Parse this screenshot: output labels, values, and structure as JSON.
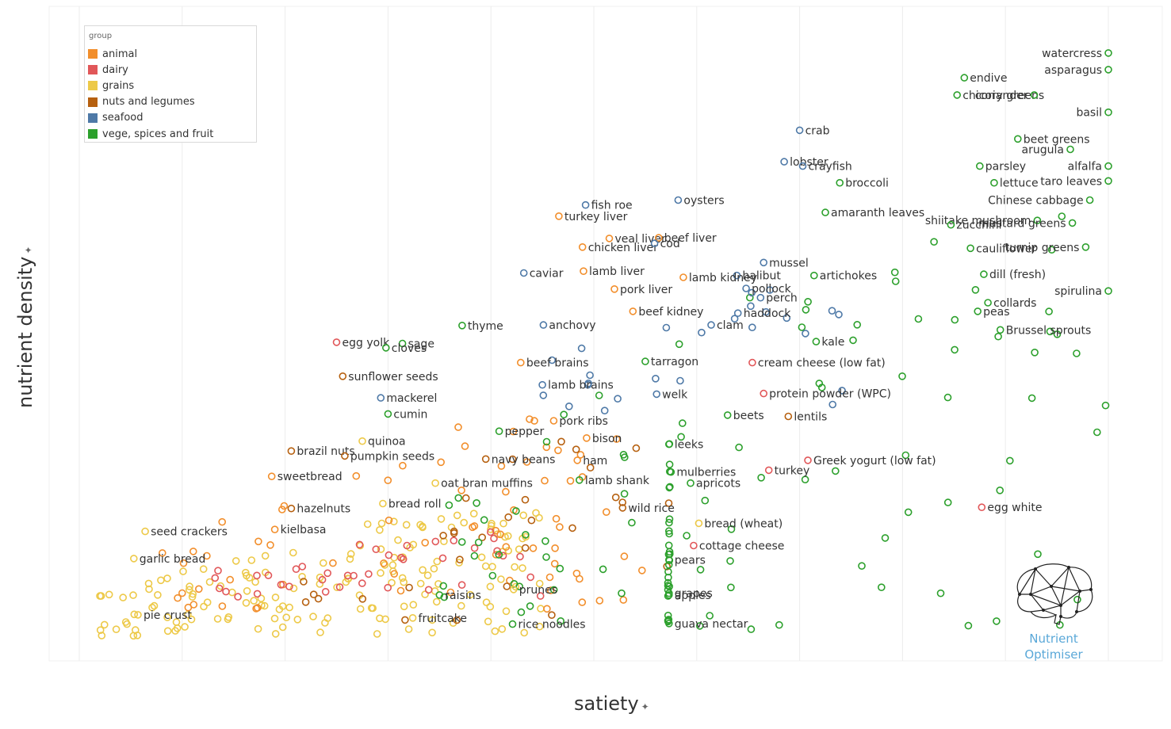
{
  "chart_data": {
    "type": "scatter",
    "xlabel": "satiety",
    "ylabel": "nutrient density",
    "legend": {
      "title": "group",
      "placement": "top-left",
      "entries": [
        {
          "name": "animal",
          "color": "#f28e2b"
        },
        {
          "name": "dairy",
          "color": "#e15759"
        },
        {
          "name": "grains",
          "color": "#edc948"
        },
        {
          "name": "nuts and legumes",
          "color": "#b6600f"
        },
        {
          "name": "seafood",
          "color": "#4e79a7"
        },
        {
          "name": "vege, spices and fruit",
          "color": "#2ca02c"
        }
      ]
    },
    "grid": true,
    "xlim": [
      0,
      100
    ],
    "ylim": [
      0,
      100
    ],
    "labeled_points": [
      {
        "label": "watercress",
        "group": "vege, spices and fruit",
        "x": 100,
        "y": 96.3
      },
      {
        "label": "asparagus",
        "group": "vege, spices and fruit",
        "x": 100,
        "y": 93.6
      },
      {
        "label": "endive",
        "group": "vege, spices and fruit",
        "x": 86.0,
        "y": 92.3
      },
      {
        "label": "chicory greens",
        "group": "vege, spices and fruit",
        "x": 85.3,
        "y": 89.5
      },
      {
        "label": "coriander",
        "group": "vege, spices and fruit",
        "x": 92.8,
        "y": 89.5
      },
      {
        "label": "basil",
        "group": "vege, spices and fruit",
        "x": 100,
        "y": 86.7
      },
      {
        "label": "crab",
        "group": "seafood",
        "x": 70.0,
        "y": 83.8
      },
      {
        "label": "arugula",
        "group": "vege, spices and fruit",
        "x": 96.3,
        "y": 80.7
      },
      {
        "label": "beet greens",
        "group": "vege, spices and fruit",
        "x": 91.2,
        "y": 82.4
      },
      {
        "label": "lobster",
        "group": "seafood",
        "x": 68.5,
        "y": 78.7
      },
      {
        "label": "parsley",
        "group": "vege, spices and fruit",
        "x": 87.5,
        "y": 78.0
      },
      {
        "label": "alfalfa",
        "group": "vege, spices and fruit",
        "x": 100,
        "y": 78.0
      },
      {
        "label": "crayfish",
        "group": "seafood",
        "x": 70.3,
        "y": 78.0
      },
      {
        "label": "broccoli",
        "group": "vege, spices and fruit",
        "x": 73.9,
        "y": 75.3
      },
      {
        "label": "lettuce",
        "group": "vege, spices and fruit",
        "x": 88.9,
        "y": 75.3
      },
      {
        "label": "taro leaves",
        "group": "vege, spices and fruit",
        "x": 100,
        "y": 75.6
      },
      {
        "label": "Chinese cabbage",
        "group": "vege, spices and fruit",
        "x": 98.2,
        "y": 72.5
      },
      {
        "label": "fish roe",
        "group": "seafood",
        "x": 49.2,
        "y": 71.7
      },
      {
        "label": "oysters",
        "group": "seafood",
        "x": 58.2,
        "y": 72.5
      },
      {
        "label": "amaranth leaves",
        "group": "vege, spices and fruit",
        "x": 72.5,
        "y": 70.5
      },
      {
        "label": "shiitake mushroom",
        "group": "vege, spices and fruit",
        "x": 93.1,
        "y": 69.2
      },
      {
        "label": "turkey liver",
        "group": "animal",
        "x": 46.6,
        "y": 69.9
      },
      {
        "label": "zucchini",
        "group": "vege, spices and fruit",
        "x": 84.7,
        "y": 68.5
      },
      {
        "label": "mustard greens",
        "group": "vege, spices and fruit",
        "x": 96.5,
        "y": 68.8
      },
      {
        "label": "veal liver",
        "group": "animal",
        "x": 51.5,
        "y": 66.3
      },
      {
        "label": "beef liver",
        "group": "animal",
        "x": 56.3,
        "y": 66.4
      },
      {
        "label": "chicken liver",
        "group": "animal",
        "x": 48.9,
        "y": 64.9
      },
      {
        "label": "cod",
        "group": "seafood",
        "x": 55.9,
        "y": 65.5
      },
      {
        "label": "mussel",
        "group": "seafood",
        "x": 66.5,
        "y": 62.4
      },
      {
        "label": "halibut",
        "group": "seafood",
        "x": 63.9,
        "y": 60.3
      },
      {
        "label": "cauliflower",
        "group": "vege, spices and fruit",
        "x": 86.6,
        "y": 64.7
      },
      {
        "label": "turnip greens",
        "group": "vege, spices and fruit",
        "x": 97.8,
        "y": 64.9
      },
      {
        "label": "artichokes",
        "group": "vege, spices and fruit",
        "x": 71.4,
        "y": 60.3
      },
      {
        "label": "caviar",
        "group": "seafood",
        "x": 43.2,
        "y": 60.7
      },
      {
        "label": "lamb kidney",
        "group": "animal",
        "x": 58.7,
        "y": 60.0
      },
      {
        "label": "lamb liver",
        "group": "animal",
        "x": 49.0,
        "y": 61.0
      },
      {
        "label": "dill (fresh)",
        "group": "vege, spices and fruit",
        "x": 87.9,
        "y": 60.5
      },
      {
        "label": "pollock",
        "group": "seafood",
        "x": 64.8,
        "y": 58.2
      },
      {
        "label": "pork liver",
        "group": "animal",
        "x": 52.0,
        "y": 58.1
      },
      {
        "label": "spirulina",
        "group": "vege, spices and fruit",
        "x": 100,
        "y": 57.8
      },
      {
        "label": "collards",
        "group": "vege, spices and fruit",
        "x": 88.3,
        "y": 55.9
      },
      {
        "label": "perch",
        "group": "seafood",
        "x": 66.2,
        "y": 56.7
      },
      {
        "label": "beef kidney",
        "group": "animal",
        "x": 53.8,
        "y": 54.5
      },
      {
        "label": "anchovy",
        "group": "seafood",
        "x": 45.1,
        "y": 52.3
      },
      {
        "label": "clam",
        "group": "seafood",
        "x": 61.4,
        "y": 52.3
      },
      {
        "label": "haddock",
        "group": "seafood",
        "x": 64.0,
        "y": 54.2
      },
      {
        "label": "peas",
        "group": "vege, spices and fruit",
        "x": 87.3,
        "y": 54.5
      },
      {
        "label": "thyme",
        "group": "vege, spices and fruit",
        "x": 37.2,
        "y": 52.2
      },
      {
        "label": "sage",
        "group": "vege, spices and fruit",
        "x": 31.4,
        "y": 49.3
      },
      {
        "label": "kale",
        "group": "vege, spices and fruit",
        "x": 71.6,
        "y": 49.6
      },
      {
        "label": "Brussel sprouts",
        "group": "vege, spices and fruit",
        "x": 89.5,
        "y": 51.5
      },
      {
        "label": "egg yolk",
        "group": "dairy",
        "x": 25.0,
        "y": 49.5
      },
      {
        "label": "cloves",
        "group": "vege, spices and fruit",
        "x": 29.8,
        "y": 48.6
      },
      {
        "label": "tarragon",
        "group": "vege, spices and fruit",
        "x": 55.0,
        "y": 46.4
      },
      {
        "label": "beef brains",
        "group": "animal",
        "x": 42.9,
        "y": 46.2
      },
      {
        "label": "cream cheese (low fat)",
        "group": "dairy",
        "x": 65.4,
        "y": 46.2
      },
      {
        "label": "sunflower seeds",
        "group": "nuts and legumes",
        "x": 25.6,
        "y": 44.0
      },
      {
        "label": "welk",
        "group": "seafood",
        "x": 56.1,
        "y": 41.1
      },
      {
        "label": "protein powder (WPC)",
        "group": "dairy",
        "x": 66.5,
        "y": 41.2
      },
      {
        "label": "mackerel",
        "group": "seafood",
        "x": 29.3,
        "y": 40.5
      },
      {
        "label": "beets",
        "group": "vege, spices and fruit",
        "x": 63.0,
        "y": 37.7
      },
      {
        "label": "lamb brains",
        "group": "seafood",
        "x": 45.0,
        "y": 42.6
      },
      {
        "label": "cumin",
        "group": "vege, spices and fruit",
        "x": 30.0,
        "y": 37.9
      },
      {
        "label": "pork ribs",
        "group": "animal",
        "x": 46.1,
        "y": 36.8
      },
      {
        "label": "lentils",
        "group": "nuts and legumes",
        "x": 68.9,
        "y": 37.5
      },
      {
        "label": "quinoa",
        "group": "grains",
        "x": 27.5,
        "y": 33.5
      },
      {
        "label": "pepper",
        "group": "vege, spices and fruit",
        "x": 40.8,
        "y": 35.1
      },
      {
        "label": "bison",
        "group": "animal",
        "x": 49.3,
        "y": 34.0
      },
      {
        "label": "leeks",
        "group": "vege, spices and fruit",
        "x": 57.3,
        "y": 33.0
      },
      {
        "label": "brazil nuts",
        "group": "nuts and legumes",
        "x": 20.6,
        "y": 31.9
      },
      {
        "label": "pumpkin seeds",
        "group": "nuts and legumes",
        "x": 25.8,
        "y": 31.1
      },
      {
        "label": "ham",
        "group": "animal",
        "x": 48.4,
        "y": 30.4
      },
      {
        "label": "Greek yogurt (low fat)",
        "group": "dairy",
        "x": 70.8,
        "y": 30.4
      },
      {
        "label": "turkey",
        "group": "dairy",
        "x": 67.0,
        "y": 28.8
      },
      {
        "label": "navy beans",
        "group": "nuts and legumes",
        "x": 39.5,
        "y": 30.6
      },
      {
        "label": "mulberries",
        "group": "vege, spices and fruit",
        "x": 57.5,
        "y": 28.5
      },
      {
        "label": "oat bran muffins",
        "group": "grains",
        "x": 34.6,
        "y": 26.7
      },
      {
        "label": "sweetbread",
        "group": "animal",
        "x": 18.7,
        "y": 27.8
      },
      {
        "label": "apricots",
        "group": "vege, spices and fruit",
        "x": 59.4,
        "y": 26.7
      },
      {
        "label": "lamb shank",
        "group": "vege, spices and fruit",
        "x": 48.6,
        "y": 27.2
      },
      {
        "label": "bread roll",
        "group": "grains",
        "x": 29.5,
        "y": 23.4
      },
      {
        "label": "hazelnuts",
        "group": "nuts and legumes",
        "x": 20.6,
        "y": 22.6
      },
      {
        "label": "egg white",
        "group": "dairy",
        "x": 87.7,
        "y": 22.8
      },
      {
        "label": "bread (wheat)",
        "group": "grains",
        "x": 60.2,
        "y": 20.2
      },
      {
        "label": "kielbasa",
        "group": "animal",
        "x": 19.0,
        "y": 19.2
      },
      {
        "label": "wild rice",
        "group": "nuts and legumes",
        "x": 52.8,
        "y": 22.7
      },
      {
        "label": "seed crackers",
        "group": "grains",
        "x": 6.4,
        "y": 18.9
      },
      {
        "label": "cottage cheese",
        "group": "dairy",
        "x": 59.7,
        "y": 16.6
      },
      {
        "label": "garlic bread",
        "group": "grains",
        "x": 5.3,
        "y": 14.5
      },
      {
        "label": "pears",
        "group": "vege, spices and fruit",
        "x": 57.3,
        "y": 14.3
      },
      {
        "label": "raisins",
        "group": "vege, spices and fruit",
        "x": 35.0,
        "y": 8.6
      },
      {
        "label": "prunes",
        "group": "grains",
        "x": 42.2,
        "y": 9.5
      },
      {
        "label": "grapes",
        "group": "vege, spices and fruit",
        "x": 57.3,
        "y": 8.9
      },
      {
        "label": "apples",
        "group": "vege, spices and fruit",
        "x": 57.3,
        "y": 8.6
      },
      {
        "label": "pie crust",
        "group": "grains",
        "x": 5.7,
        "y": 5.4
      },
      {
        "label": "rice noodles",
        "group": "vege, spices and fruit",
        "x": 42.1,
        "y": 3.9
      },
      {
        "label": "fruitcake",
        "group": "grains",
        "x": 32.4,
        "y": 4.9
      },
      {
        "label": "guava nectar",
        "group": "vege, spices and fruit",
        "x": 57.3,
        "y": 4.0
      }
    ]
  },
  "axes": {
    "x_title": "satiety",
    "y_title": "nutrient density",
    "pin_symbol": "✦"
  },
  "logo": {
    "line1": "Nutrient",
    "line2": "Optimiser",
    "color": "#5aa8d8"
  }
}
